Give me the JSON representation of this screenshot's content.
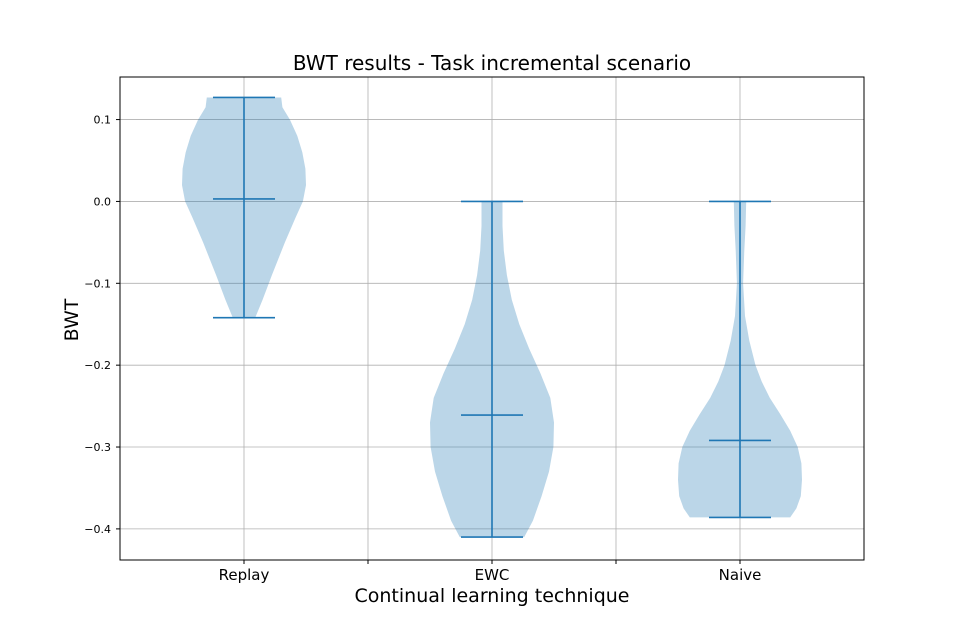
{
  "chart_data": {
    "type": "violin",
    "title": "BWT results - Task incremental scenario",
    "xlabel": "Continual learning technique",
    "ylabel": "BWT",
    "ylim": [
      -0.438,
      0.152
    ],
    "grid": true,
    "yticks": [
      0.1,
      0.0,
      -0.1,
      -0.2,
      -0.3,
      -0.4
    ],
    "ytick_labels": [
      "0.1",
      "0.0",
      "−0.1",
      "−0.2",
      "−0.3",
      "−0.4"
    ],
    "categories": [
      "Replay",
      "EWC",
      "Naive"
    ],
    "color": "#1f77b4",
    "series": [
      {
        "min": -0.142,
        "max": 0.127,
        "mean": 0.003,
        "profile": [
          [
            -0.142,
            0.18
          ],
          [
            -0.12,
            0.3
          ],
          [
            -0.09,
            0.45
          ],
          [
            -0.05,
            0.66
          ],
          [
            -0.02,
            0.83
          ],
          [
            0.0,
            0.95
          ],
          [
            0.02,
            1.0
          ],
          [
            0.04,
            0.99
          ],
          [
            0.06,
            0.94
          ],
          [
            0.08,
            0.86
          ],
          [
            0.1,
            0.74
          ],
          [
            0.115,
            0.62
          ],
          [
            0.127,
            0.6
          ]
        ]
      },
      {
        "min": -0.41,
        "max": 0.0,
        "mean": -0.261,
        "profile": [
          [
            -0.41,
            0.52
          ],
          [
            -0.39,
            0.66
          ],
          [
            -0.36,
            0.8
          ],
          [
            -0.33,
            0.92
          ],
          [
            -0.3,
            0.99
          ],
          [
            -0.27,
            1.0
          ],
          [
            -0.24,
            0.94
          ],
          [
            -0.21,
            0.78
          ],
          [
            -0.18,
            0.6
          ],
          [
            -0.15,
            0.44
          ],
          [
            -0.12,
            0.32
          ],
          [
            -0.09,
            0.24
          ],
          [
            -0.06,
            0.19
          ],
          [
            -0.03,
            0.17
          ],
          [
            0.0,
            0.17
          ]
        ]
      },
      {
        "min": -0.386,
        "max": 0.0,
        "mean": -0.292,
        "profile": [
          [
            -0.386,
            0.81
          ],
          [
            -0.375,
            0.91
          ],
          [
            -0.36,
            0.98
          ],
          [
            -0.34,
            1.0
          ],
          [
            -0.32,
            0.99
          ],
          [
            -0.3,
            0.93
          ],
          [
            -0.28,
            0.81
          ],
          [
            -0.26,
            0.65
          ],
          [
            -0.24,
            0.48
          ],
          [
            -0.22,
            0.35
          ],
          [
            -0.2,
            0.25
          ],
          [
            -0.17,
            0.15
          ],
          [
            -0.14,
            0.08
          ],
          [
            -0.1,
            0.05
          ],
          [
            -0.06,
            0.07
          ],
          [
            -0.03,
            0.09
          ],
          [
            0.0,
            0.1
          ]
        ]
      }
    ]
  }
}
